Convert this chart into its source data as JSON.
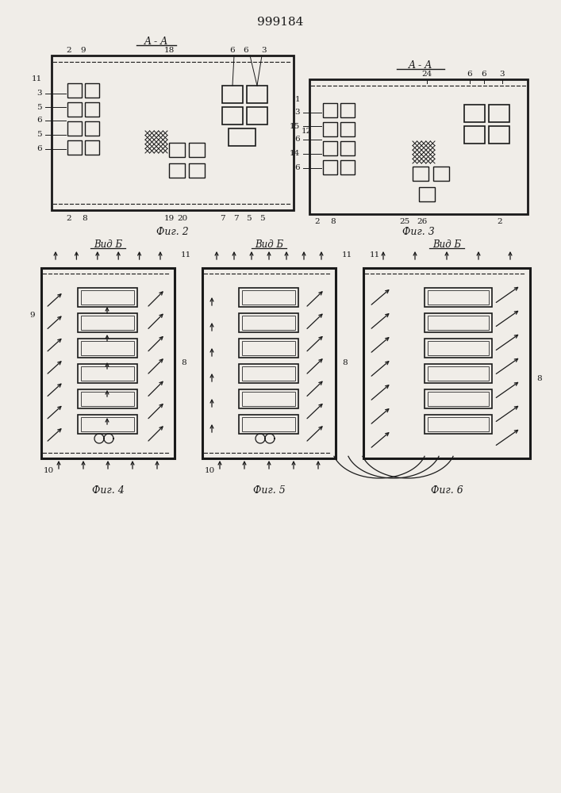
{
  "title": "999184",
  "bg_color": "#f0ede8",
  "line_color": "#1a1a1a",
  "fig2_label": "Фиг. 2",
  "fig3_label": "Фиг. 3",
  "fig4_label": "Фиг. 4",
  "fig5_label": "Фиг. 5",
  "fig6_label": "Фиг. 6",
  "vid_b_label": "Вид Б",
  "aa_label": "A - A"
}
